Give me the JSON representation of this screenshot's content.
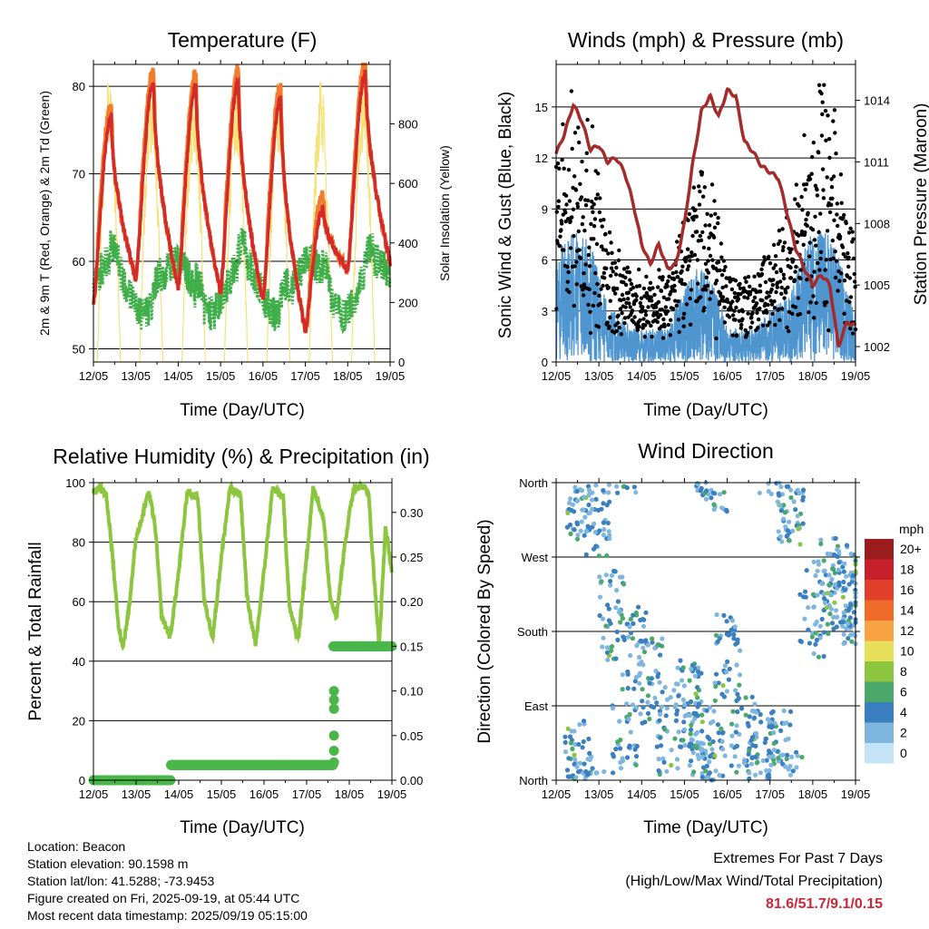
{
  "colors": {
    "t2m": "#d42a2a",
    "t9m": "#f47a2c",
    "td2m": "#3fae49",
    "solar": "#f5e27a",
    "wind": "#4f95d0",
    "gust": "#000000",
    "pressure": "#a52a2a",
    "rh": "#8cc63f",
    "precip": "#4ab64a",
    "grid": "#000000",
    "highlight": "#c8283a"
  },
  "chart_data": [
    {
      "type": "line",
      "title": "Temperature (F)",
      "xlabel": "Time (Day/UTC)",
      "ylabel": "2m & 9m T (Red, Orange) & 2m Td (Green)",
      "ylabel_right": "Solar Insolation (Yellow)",
      "x_ticks": [
        "12/05",
        "13/05",
        "14/05",
        "15/05",
        "16/05",
        "17/05",
        "18/05",
        "19/05"
      ],
      "xlim": [
        0,
        7
      ],
      "ylim": [
        48.5,
        82.5
      ],
      "y_ticks": [
        50,
        60,
        70,
        80
      ],
      "ylim_right": [
        0,
        1000
      ],
      "y_ticks_right": [
        0,
        200,
        400,
        600,
        800
      ],
      "grid_y": true,
      "daily_max_t": [
        76.5,
        80.5,
        80,
        80.5,
        78.5,
        66,
        81.5
      ],
      "daily_min_t": [
        55,
        58,
        57,
        56.5,
        55.5,
        52,
        59
      ],
      "series": [
        {
          "name": "2m T",
          "color_key": "t2m"
        },
        {
          "name": "9m T",
          "color_key": "t9m"
        },
        {
          "name": "2m Td",
          "color_key": "td2m"
        },
        {
          "name": "Solar Insolation",
          "color_key": "solar"
        }
      ]
    },
    {
      "type": "scatter",
      "title": "Winds (mph) & Pressure (mb)",
      "xlabel": "Time (Day/UTC)",
      "ylabel": "Sonic Wind & Gust (Blue, Black)",
      "ylabel_right": "Station Pressure (Maroon)",
      "x_ticks": [
        "12/05",
        "13/05",
        "14/05",
        "15/05",
        "16/05",
        "17/05",
        "18/05",
        "19/05"
      ],
      "xlim": [
        0,
        7
      ],
      "ylim": [
        0,
        17.5
      ],
      "y_ticks": [
        0,
        3,
        6,
        9,
        12,
        15
      ],
      "ylim_right": [
        1001.25,
        1015.75
      ],
      "y_ticks_right": [
        1002,
        1005,
        1008,
        1011,
        1014
      ],
      "grid_y": true,
      "pressure": {
        "x": [
          0,
          0.2,
          0.4,
          0.6,
          0.8,
          1.0,
          1.2,
          1.4,
          1.6,
          1.8,
          2.0,
          2.2,
          2.4,
          2.6,
          2.8,
          3.0,
          3.2,
          3.4,
          3.6,
          3.8,
          4.0,
          4.2,
          4.4,
          4.6,
          4.8,
          5.0,
          5.2,
          5.4,
          5.6,
          5.8,
          6.0,
          6.2,
          6.4,
          6.6,
          6.8,
          7.0
        ],
        "y": [
          1011.4,
          1012.4,
          1013.8,
          1013.0,
          1011.6,
          1011.8,
          1011.0,
          1011.2,
          1010.5,
          1009.0,
          1007.0,
          1006.0,
          1007.0,
          1005.8,
          1006.0,
          1008.0,
          1011.0,
          1013.5,
          1014.2,
          1013.2,
          1014.5,
          1014.2,
          1012.0,
          1011.5,
          1010.8,
          1010.5,
          1010.2,
          1008.5,
          1006.8,
          1005.8,
          1005.0,
          1005.5,
          1005.0,
          1002.0,
          1003.2,
          1003.0
        ]
      },
      "series": [
        {
          "name": "Sonic Wind",
          "color_key": "wind"
        },
        {
          "name": "Gust",
          "color_key": "gust"
        },
        {
          "name": "Station Pressure",
          "color_key": "pressure"
        }
      ]
    },
    {
      "type": "line",
      "title": "Relative Humidity (%) & Precipitation (in)",
      "xlabel": "Time (Day/UTC)",
      "ylabel": "Percent & Total Rainfall",
      "x_ticks": [
        "12/05",
        "13/05",
        "14/05",
        "15/05",
        "16/05",
        "17/05",
        "18/05",
        "19/05"
      ],
      "xlim": [
        0,
        7
      ],
      "ylim": [
        0,
        100
      ],
      "y_ticks": [
        0,
        20,
        40,
        60,
        80,
        100
      ],
      "ylim_right": [
        0,
        0.3333
      ],
      "y_ticks_right": [
        0.0,
        0.05,
        0.1,
        0.15,
        0.2,
        0.25,
        0.3
      ],
      "y_tick_labels_right": [
        "0.00",
        "0.05",
        "0.10",
        "0.15",
        "0.20",
        "0.25",
        "0.30"
      ],
      "grid_y": true,
      "rh": {
        "x": [
          0,
          0.15,
          0.3,
          0.45,
          0.6,
          0.7,
          0.85,
          1.0,
          1.1,
          1.3,
          1.45,
          1.6,
          1.8,
          2.0,
          2.2,
          2.45,
          2.6,
          2.8,
          3.0,
          3.2,
          3.45,
          3.6,
          3.8,
          4.0,
          4.2,
          4.45,
          4.6,
          4.8,
          5.0,
          5.15,
          5.4,
          5.55,
          5.7,
          5.9,
          6.1,
          6.3,
          6.45,
          6.55,
          6.7,
          6.85,
          7.0
        ],
        "y": [
          97,
          98,
          96,
          75,
          50,
          45,
          60,
          82,
          86,
          97,
          85,
          55,
          48,
          70,
          97,
          95,
          60,
          48,
          75,
          98,
          96,
          62,
          45,
          70,
          98,
          95,
          58,
          47,
          75,
          98,
          88,
          62,
          55,
          80,
          98,
          99,
          97,
          75,
          45,
          85,
          70
        ]
      },
      "precip": {
        "x": [
          0,
          1.82,
          1.82,
          5.62,
          5.62,
          5.65,
          5.68,
          7.0
        ],
        "y": [
          0,
          0,
          0.017,
          0.017,
          0.03,
          0.09,
          0.15,
          0.15
        ]
      },
      "series": [
        {
          "name": "Relative Humidity",
          "color_key": "rh"
        },
        {
          "name": "Total Precipitation",
          "color_key": "precip"
        }
      ]
    },
    {
      "type": "scatter",
      "title": "Wind Direction",
      "xlabel": "Time (Day/UTC)",
      "ylabel": "Direction (Colored By Speed)",
      "x_ticks": [
        "12/05",
        "13/05",
        "14/05",
        "15/05",
        "16/05",
        "17/05",
        "18/05",
        "19/05"
      ],
      "xlim": [
        0,
        7
      ],
      "ylim": [
        0,
        360
      ],
      "y_ticks": [
        0,
        90,
        180,
        270,
        360
      ],
      "y_tick_labels": [
        "North",
        "East",
        "South",
        "West",
        "North"
      ],
      "grid_y": true,
      "colorbar": {
        "unit": "mph",
        "labels": [
          "20+",
          "18",
          "16",
          "14",
          "12",
          "10",
          "8",
          "6",
          "4",
          "2",
          "0"
        ],
        "colors": [
          "#9b1c1c",
          "#c8202a",
          "#e0402a",
          "#f06a2a",
          "#f9a243",
          "#e8df5a",
          "#8cc63f",
          "#4aa86a",
          "#3a7fbf",
          "#7fb6e0",
          "#c3e4f7"
        ]
      }
    }
  ],
  "info": {
    "location": "Location: Beacon",
    "elevation": "Station elevation: 90.1598 m",
    "latlon": "Station lat/lon: 41.5288; -73.9453",
    "created": "Figure created on Fri, 2025-09-19, at 05:44 UTC",
    "recent": "Most recent data timestamp: 2025/09/19 05:15:00"
  },
  "extremes": {
    "line1": "Extremes For Past 7 Days",
    "line2": "(High/Low/Max Wind/Total Precipitation)",
    "values": "81.6/51.7/9.1/0.15"
  }
}
